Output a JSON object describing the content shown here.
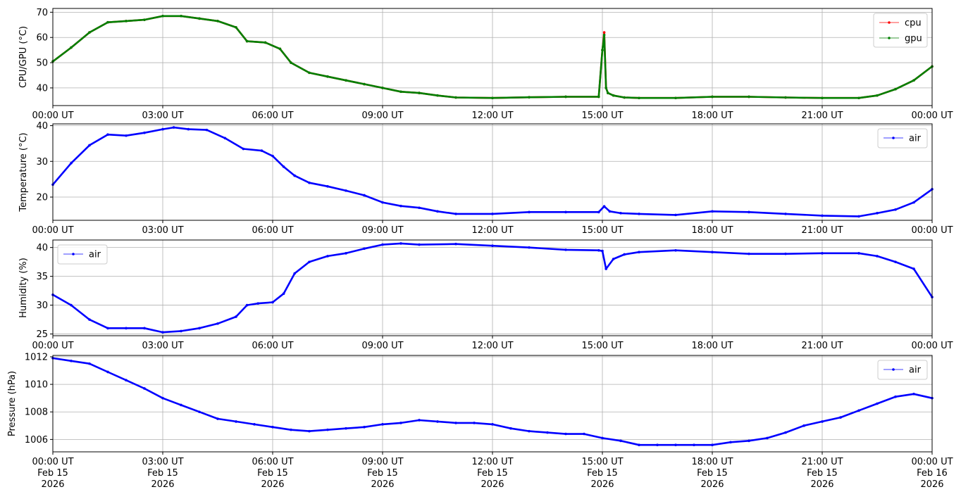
{
  "chart_data": [
    {
      "type": "scatter",
      "ylabel": "CPU/GPU (°C)",
      "ylim": [
        33,
        71.5
      ],
      "yticks": [
        40,
        50,
        60,
        70
      ],
      "xlim": [
        0,
        24
      ],
      "xticks": [
        0,
        3,
        6,
        9,
        12,
        15,
        18,
        21,
        24
      ],
      "xtick_labels": [
        "00:00 UT",
        "03:00 UT",
        "06:00 UT",
        "09:00 UT",
        "12:00 UT",
        "15:00 UT",
        "18:00 UT",
        "21:00 UT",
        "00:00 UT"
      ],
      "grid": true,
      "legend": "top-right",
      "series": [
        {
          "name": "cpu",
          "color": "#ff0000",
          "x": [
            0,
            0.5,
            1,
            1.5,
            2,
            2.5,
            3,
            3.5,
            4,
            4.5,
            5,
            5.3,
            5.8,
            6.2,
            6.5,
            7,
            7.5,
            8,
            8.5,
            9,
            9.5,
            10,
            10.5,
            11,
            12,
            13,
            14,
            14.9,
            15.0,
            15.05,
            15.1,
            15.15,
            15.3,
            15.6,
            16,
            17,
            18,
            19,
            20,
            21,
            22,
            22.5,
            23,
            23.5,
            24
          ],
          "y": [
            50.5,
            56,
            62,
            66,
            66.5,
            67,
            68.5,
            68.5,
            67.5,
            66.5,
            64,
            58.5,
            58,
            55.5,
            50,
            46,
            44.5,
            43,
            41.5,
            40,
            38.5,
            38,
            37,
            36.2,
            36,
            36.3,
            36.5,
            36.5,
            55,
            62,
            40,
            38,
            37,
            36.2,
            36,
            36,
            36.5,
            36.5,
            36.2,
            36,
            36,
            37,
            39.5,
            43,
            48.5
          ]
        },
        {
          "name": "gpu",
          "color": "#008000",
          "x": [
            0,
            0.5,
            1,
            1.5,
            2,
            2.5,
            3,
            3.5,
            4,
            4.5,
            5,
            5.3,
            5.8,
            6.2,
            6.5,
            7,
            7.5,
            8,
            8.5,
            9,
            9.5,
            10,
            10.5,
            11,
            12,
            13,
            14,
            14.9,
            15.0,
            15.05,
            15.1,
            15.15,
            15.3,
            15.6,
            16,
            17,
            18,
            19,
            20,
            21,
            22,
            22.5,
            23,
            23.5,
            24
          ],
          "y": [
            50.5,
            56,
            62,
            66,
            66.5,
            67,
            68.5,
            68.5,
            67.5,
            66.5,
            64,
            58.5,
            58,
            55.5,
            50,
            46,
            44.5,
            43,
            41.5,
            40,
            38.5,
            38,
            37,
            36.2,
            36,
            36.3,
            36.5,
            36.5,
            55,
            61,
            40,
            38,
            37,
            36.2,
            36,
            36,
            36.5,
            36.5,
            36.2,
            36,
            36,
            37,
            39.5,
            43,
            48.5
          ]
        }
      ]
    },
    {
      "type": "scatter",
      "ylabel": "Temperature (°C)",
      "ylim": [
        13.5,
        40.5
      ],
      "yticks": [
        20,
        30,
        40
      ],
      "xlim": [
        0,
        24
      ],
      "xticks": [
        0,
        3,
        6,
        9,
        12,
        15,
        18,
        21,
        24
      ],
      "xtick_labels": [
        "00:00 UT",
        "03:00 UT",
        "06:00 UT",
        "09:00 UT",
        "12:00 UT",
        "15:00 UT",
        "18:00 UT",
        "21:00 UT",
        "00:00 UT"
      ],
      "grid": true,
      "legend": "top-right",
      "series": [
        {
          "name": "air",
          "color": "#0000ff",
          "x": [
            0,
            0.5,
            1,
            1.5,
            2,
            2.5,
            3,
            3.3,
            3.7,
            4.2,
            4.7,
            5.2,
            5.7,
            6.0,
            6.3,
            6.6,
            7,
            7.5,
            8,
            8.5,
            9,
            9.5,
            10,
            10.5,
            11,
            12,
            13,
            14,
            14.9,
            15.05,
            15.2,
            15.5,
            16,
            17,
            18,
            19,
            20,
            21,
            22,
            22.5,
            23,
            23.5,
            24
          ],
          "y": [
            23.5,
            29.5,
            34.5,
            37.5,
            37.2,
            38,
            39,
            39.5,
            39,
            38.8,
            36.5,
            33.5,
            33,
            31.5,
            28.5,
            26,
            24,
            23,
            21.8,
            20.5,
            18.5,
            17.5,
            17,
            16,
            15.3,
            15.3,
            15.8,
            15.8,
            15.8,
            17.4,
            16,
            15.5,
            15.3,
            15,
            16,
            15.8,
            15.3,
            14.8,
            14.6,
            15.5,
            16.5,
            18.5,
            22.2
          ]
        }
      ]
    },
    {
      "type": "scatter",
      "ylabel": "Humidity (%)",
      "ylim": [
        24.7,
        41.3
      ],
      "yticks": [
        25,
        30,
        35,
        40
      ],
      "xlim": [
        0,
        24
      ],
      "xticks": [
        0,
        3,
        6,
        9,
        12,
        15,
        18,
        21,
        24
      ],
      "xtick_labels": [
        "00:00 UT",
        "03:00 UT",
        "06:00 UT",
        "09:00 UT",
        "12:00 UT",
        "15:00 UT",
        "18:00 UT",
        "21:00 UT",
        "00:00 UT"
      ],
      "grid": true,
      "legend": "top-left",
      "series": [
        {
          "name": "air",
          "color": "#0000ff",
          "x": [
            0,
            0.5,
            1,
            1.5,
            2,
            2.5,
            3,
            3.5,
            4,
            4.5,
            5,
            5.3,
            5.6,
            6,
            6.3,
            6.6,
            7,
            7.5,
            8,
            8.5,
            9,
            9.5,
            10,
            11,
            12,
            13,
            14,
            14.9,
            15.0,
            15.1,
            15.3,
            15.6,
            16,
            17,
            18,
            19,
            20,
            21,
            22,
            22.5,
            23,
            23.5,
            24
          ],
          "y": [
            31.8,
            30,
            27.5,
            26,
            26,
            26,
            25.3,
            25.5,
            26,
            26.8,
            28,
            30,
            30.3,
            30.5,
            32,
            35.5,
            37.5,
            38.5,
            39,
            39.8,
            40.5,
            40.7,
            40.5,
            40.6,
            40.3,
            40,
            39.6,
            39.5,
            39.4,
            36.3,
            38,
            38.8,
            39.2,
            39.5,
            39.2,
            38.9,
            38.9,
            39,
            39,
            38.5,
            37.5,
            36.3,
            31.4
          ]
        }
      ]
    },
    {
      "type": "scatter",
      "ylabel": "Pressure (hPa)",
      "ylim": [
        1005.1,
        1012.1
      ],
      "yticks": [
        1006,
        1008,
        1010,
        1012
      ],
      "xlim": [
        0,
        24
      ],
      "xticks": [
        0,
        3,
        6,
        9,
        12,
        15,
        18,
        21,
        24
      ],
      "xtick_labels": [
        "00:00 UT\nFeb 15\n2026",
        "03:00 UT\nFeb 15\n2026",
        "06:00 UT\nFeb 15\n2026",
        "09:00 UT\nFeb 15\n2026",
        "12:00 UT\nFeb 15\n2026",
        "15:00 UT\nFeb 15\n2026",
        "18:00 UT\nFeb 15\n2026",
        "21:00 UT\nFeb 15\n2026",
        "00:00 UT\nFeb 16\n2026"
      ],
      "grid": true,
      "legend": "top-right",
      "series": [
        {
          "name": "air",
          "color": "#0000ff",
          "x": [
            0,
            0.5,
            1,
            1.5,
            2,
            2.5,
            3,
            3.5,
            4,
            4.5,
            5,
            5.5,
            6,
            6.5,
            7,
            7.5,
            8,
            8.5,
            9,
            9.5,
            10,
            10.5,
            11,
            11.5,
            12,
            12.5,
            13,
            13.5,
            14,
            14.5,
            15,
            15.5,
            16,
            16.5,
            17,
            17.5,
            18,
            18.5,
            19,
            19.5,
            20,
            20.5,
            21,
            21.5,
            22,
            22.5,
            23,
            23.5,
            24
          ],
          "y": [
            1011.9,
            1011.7,
            1011.5,
            1010.9,
            1010.3,
            1009.7,
            1009.0,
            1008.5,
            1008.0,
            1007.5,
            1007.3,
            1007.1,
            1006.9,
            1006.7,
            1006.6,
            1006.7,
            1006.8,
            1006.9,
            1007.1,
            1007.2,
            1007.4,
            1007.3,
            1007.2,
            1007.2,
            1007.1,
            1006.8,
            1006.6,
            1006.5,
            1006.4,
            1006.4,
            1006.1,
            1005.9,
            1005.6,
            1005.6,
            1005.6,
            1005.6,
            1005.6,
            1005.8,
            1005.9,
            1006.1,
            1006.5,
            1007.0,
            1007.3,
            1007.6,
            1008.1,
            1008.6,
            1009.1,
            1009.3,
            1009.0
          ]
        }
      ]
    }
  ]
}
